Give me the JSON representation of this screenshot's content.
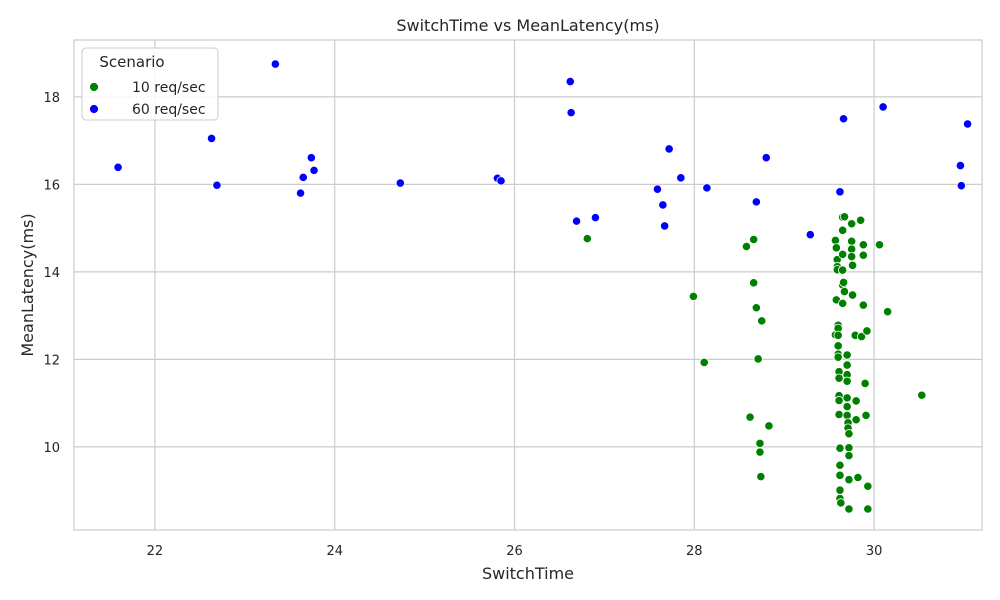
{
  "chart_data": {
    "type": "scatter",
    "title": "SwitchTime vs MeanLatency(ms)",
    "xlabel": "SwitchTime",
    "ylabel": "MeanLatency(ms)",
    "xlim": [
      21.1,
      31.2
    ],
    "ylim": [
      8.1,
      19.3
    ],
    "xticks": [
      22,
      24,
      26,
      28,
      30
    ],
    "yticks": [
      10,
      12,
      14,
      16,
      18
    ],
    "grid": true,
    "legend": {
      "title": "Scenario",
      "placement": "top-left"
    },
    "series": [
      {
        "name": "10 req/sec",
        "color": "#008000",
        "points": [
          [
            26.81,
            14.76
          ],
          [
            27.99,
            13.44
          ],
          [
            28.11,
            11.93
          ],
          [
            28.58,
            14.58
          ],
          [
            28.62,
            10.68
          ],
          [
            28.66,
            14.74
          ],
          [
            28.66,
            13.75
          ],
          [
            28.69,
            13.18
          ],
          [
            28.71,
            12.01
          ],
          [
            28.73,
            10.08
          ],
          [
            28.73,
            9.88
          ],
          [
            28.74,
            9.32
          ],
          [
            28.75,
            12.88
          ],
          [
            28.83,
            10.48
          ],
          [
            29.57,
            14.72
          ],
          [
            29.58,
            14.55
          ],
          [
            29.57,
            12.56
          ],
          [
            29.58,
            13.36
          ],
          [
            29.59,
            14.28
          ],
          [
            29.59,
            14.12
          ],
          [
            29.59,
            14.05
          ],
          [
            29.6,
            12.78
          ],
          [
            29.6,
            12.71
          ],
          [
            29.6,
            12.55
          ],
          [
            29.6,
            12.31
          ],
          [
            29.6,
            12.12
          ],
          [
            29.6,
            12.05
          ],
          [
            29.61,
            11.72
          ],
          [
            29.61,
            11.57
          ],
          [
            29.61,
            11.17
          ],
          [
            29.61,
            11.06
          ],
          [
            29.61,
            10.74
          ],
          [
            29.62,
            9.97
          ],
          [
            29.62,
            9.58
          ],
          [
            29.62,
            9.35
          ],
          [
            29.62,
            9.01
          ],
          [
            29.62,
            8.82
          ],
          [
            29.63,
            8.72
          ],
          [
            29.65,
            15.25
          ],
          [
            29.65,
            14.95
          ],
          [
            29.65,
            14.4
          ],
          [
            29.65,
            14.04
          ],
          [
            29.65,
            13.7
          ],
          [
            29.65,
            13.28
          ],
          [
            29.66,
            13.76
          ],
          [
            29.67,
            13.55
          ],
          [
            29.67,
            15.26
          ],
          [
            29.7,
            12.1
          ],
          [
            29.7,
            11.87
          ],
          [
            29.7,
            11.65
          ],
          [
            29.7,
            11.5
          ],
          [
            29.7,
            11.12
          ],
          [
            29.7,
            10.92
          ],
          [
            29.7,
            10.72
          ],
          [
            29.71,
            10.55
          ],
          [
            29.71,
            10.43
          ],
          [
            29.72,
            10.3
          ],
          [
            29.72,
            9.98
          ],
          [
            29.72,
            9.8
          ],
          [
            29.72,
            9.25
          ],
          [
            29.72,
            8.58
          ],
          [
            29.75,
            15.1
          ],
          [
            29.75,
            14.7
          ],
          [
            29.75,
            14.52
          ],
          [
            29.75,
            14.35
          ],
          [
            29.76,
            14.15
          ],
          [
            29.76,
            13.47
          ],
          [
            29.79,
            12.55
          ],
          [
            29.8,
            11.05
          ],
          [
            29.8,
            10.62
          ],
          [
            29.82,
            9.3
          ],
          [
            29.85,
            15.18
          ],
          [
            29.86,
            12.52
          ],
          [
            29.88,
            14.62
          ],
          [
            29.88,
            14.38
          ],
          [
            29.88,
            13.24
          ],
          [
            29.9,
            11.45
          ],
          [
            29.91,
            10.72
          ],
          [
            29.92,
            12.65
          ],
          [
            29.93,
            9.1
          ],
          [
            29.93,
            8.58
          ],
          [
            30.06,
            14.62
          ],
          [
            30.15,
            13.09
          ],
          [
            30.53,
            11.18
          ]
        ]
      },
      {
        "name": "60 req/sec",
        "color": "#0000ff",
        "points": [
          [
            21.59,
            16.39
          ],
          [
            22.63,
            17.05
          ],
          [
            22.69,
            15.98
          ],
          [
            23.34,
            18.75
          ],
          [
            23.62,
            15.8
          ],
          [
            23.65,
            16.16
          ],
          [
            23.74,
            16.61
          ],
          [
            23.77,
            16.32
          ],
          [
            24.73,
            16.03
          ],
          [
            25.81,
            16.14
          ],
          [
            25.85,
            16.08
          ],
          [
            26.62,
            18.35
          ],
          [
            26.63,
            17.64
          ],
          [
            26.69,
            15.16
          ],
          [
            26.9,
            15.24
          ],
          [
            27.59,
            15.89
          ],
          [
            27.65,
            15.53
          ],
          [
            27.67,
            15.05
          ],
          [
            27.72,
            16.81
          ],
          [
            27.85,
            16.15
          ],
          [
            28.14,
            15.92
          ],
          [
            28.69,
            15.6
          ],
          [
            28.8,
            16.61
          ],
          [
            29.29,
            14.85
          ],
          [
            29.62,
            15.83
          ],
          [
            29.66,
            17.5
          ],
          [
            30.1,
            17.77
          ],
          [
            30.96,
            16.43
          ],
          [
            30.97,
            15.97
          ],
          [
            31.04,
            17.38
          ]
        ]
      }
    ]
  }
}
